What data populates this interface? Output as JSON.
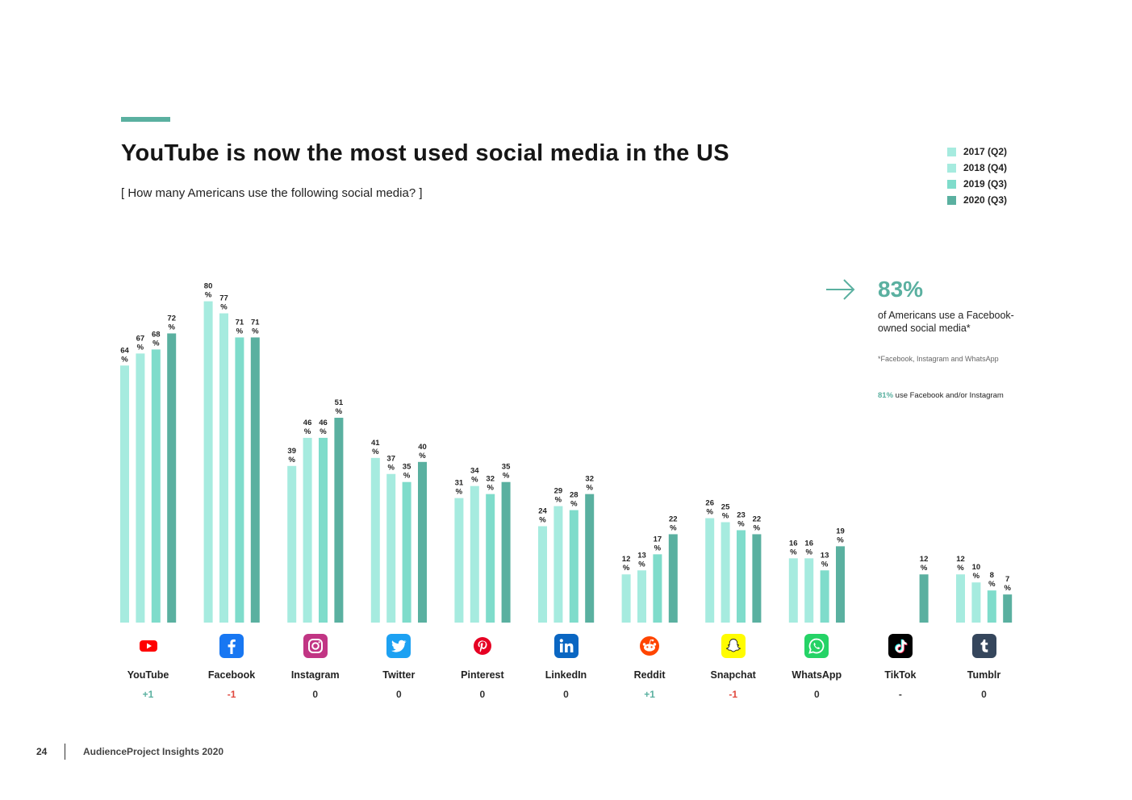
{
  "colors": {
    "accent": "#5ab0a0",
    "series": [
      "#a6ebdf",
      "#a6ebdf",
      "#7fdccb",
      "#5ab0a0"
    ],
    "positive": "#5ab0a0",
    "negative": "#e0483e",
    "neutral": "#333333"
  },
  "header": {
    "title": "YouTube is now the most used social media in the US",
    "subtitle": "[ How many Americans use the following social media? ]"
  },
  "legend": [
    {
      "label": "2017 (Q2)"
    },
    {
      "label": "2018 (Q4)"
    },
    {
      "label": "2019 (Q3)"
    },
    {
      "label": "2020 (Q3)"
    }
  ],
  "stat": {
    "value": "83%",
    "description": "of Americans use a Facebook-owned social media*",
    "footnote": "*Facebook, Instagram and WhatsApp",
    "note_pct": "81%",
    "note_text": " use Facebook and/or Instagram"
  },
  "chart_data": {
    "type": "bar",
    "title": "YouTube is now the most used social media in the US",
    "subtitle": "[ How many Americans use the following social media? ]",
    "xlabel": "",
    "ylabel": "",
    "ylim": [
      0,
      100
    ],
    "unit": "%",
    "grid": false,
    "legend_position": "top-right",
    "categories": [
      "YouTube",
      "Facebook",
      "Instagram",
      "Twitter",
      "Pinterest",
      "LinkedIn",
      "Reddit",
      "Snapchat",
      "WhatsApp",
      "TikTok",
      "Tumblr"
    ],
    "series": [
      {
        "name": "2017 (Q2)",
        "values": [
          64,
          80,
          39,
          41,
          31,
          24,
          12,
          26,
          16,
          null,
          12
        ]
      },
      {
        "name": "2018 (Q4)",
        "values": [
          67,
          77,
          46,
          37,
          34,
          29,
          13,
          25,
          16,
          null,
          10
        ]
      },
      {
        "name": "2019 (Q3)",
        "values": [
          68,
          71,
          46,
          35,
          32,
          28,
          17,
          23,
          13,
          null,
          8
        ]
      },
      {
        "name": "2020 (Q3)",
        "values": [
          72,
          71,
          51,
          40,
          35,
          32,
          22,
          22,
          19,
          12,
          7
        ]
      }
    ],
    "changes": [
      "+1",
      "-1",
      "0",
      "0",
      "0",
      "0",
      "+1",
      "-1",
      "0",
      "-",
      "0"
    ]
  },
  "platforms": [
    {
      "name": "YouTube",
      "icon": "youtube-icon",
      "change": "+1",
      "icon_bg": "#ffffff",
      "icon_color": "#ff0000"
    },
    {
      "name": "Facebook",
      "icon": "facebook-icon",
      "change": "-1",
      "icon_bg": "#1877f2",
      "icon_color": "#ffffff"
    },
    {
      "name": "Instagram",
      "icon": "instagram-icon",
      "change": "0",
      "icon_bg": "#c13584",
      "icon_color": "#ffffff"
    },
    {
      "name": "Twitter",
      "icon": "twitter-icon",
      "change": "0",
      "icon_bg": "#1da1f2",
      "icon_color": "#ffffff"
    },
    {
      "name": "Pinterest",
      "icon": "pinterest-icon",
      "change": "0",
      "icon_bg": "#ffffff",
      "icon_color": "#e60023"
    },
    {
      "name": "LinkedIn",
      "icon": "linkedin-icon",
      "change": "0",
      "icon_bg": "#0a66c2",
      "icon_color": "#ffffff"
    },
    {
      "name": "Reddit",
      "icon": "reddit-icon",
      "change": "+1",
      "icon_bg": "#ffffff",
      "icon_color": "#ff4500"
    },
    {
      "name": "Snapchat",
      "icon": "snapchat-icon",
      "change": "-1",
      "icon_bg": "#fffc00",
      "icon_color": "#ffffff"
    },
    {
      "name": "WhatsApp",
      "icon": "whatsapp-icon",
      "change": "0",
      "icon_bg": "#25d366",
      "icon_color": "#ffffff"
    },
    {
      "name": "TikTok",
      "icon": "tiktok-icon",
      "change": "-",
      "icon_bg": "#010101",
      "icon_color": "#ffffff"
    },
    {
      "name": "Tumblr",
      "icon": "tumblr-icon",
      "change": "0",
      "icon_bg": "#35465c",
      "icon_color": "#ffffff"
    }
  ],
  "footer": {
    "page_number": "24",
    "publication": "AudienceProject Insights 2020"
  }
}
